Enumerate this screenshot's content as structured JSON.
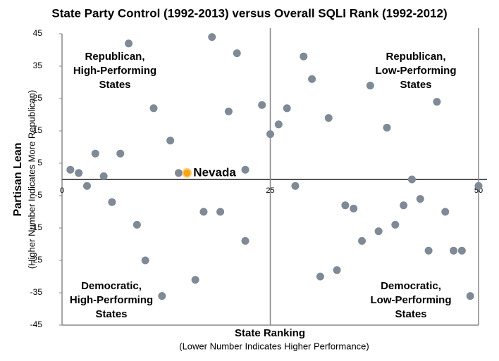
{
  "chart_data": {
    "type": "scatter",
    "title": "State Party Control (1992-2013) versus Overall SQLI Rank (1992-2012)",
    "x_label": "State Ranking",
    "x_sublabel": "(Lower Number Indicates Higher Performance)",
    "y_label": "Partisan Lean",
    "y_sublabel": "(Higher Number Indicates More Republican)",
    "color": "#7f8a96",
    "x": [
      1,
      2,
      3,
      4,
      5,
      6,
      7,
      8,
      9,
      10,
      11,
      12,
      13,
      14,
      16,
      17,
      18,
      19,
      20,
      21,
      22,
      22,
      24,
      25,
      26,
      27,
      28,
      29,
      30,
      31,
      32,
      33,
      34,
      35,
      36,
      37,
      38,
      39,
      40,
      41,
      42,
      43,
      44,
      45,
      46,
      47,
      48,
      49,
      50
    ],
    "values": [
      3,
      2,
      -2,
      8,
      1,
      -7,
      8,
      42,
      -14,
      -25,
      22,
      -36,
      12,
      2,
      -31,
      -10,
      44,
      -10,
      21,
      39,
      3,
      -19,
      23,
      14,
      17,
      22,
      -2,
      38,
      31,
      -30,
      19,
      -28,
      -8,
      -9,
      -19,
      29,
      -16,
      16,
      -14,
      -8,
      0,
      -6,
      -22,
      24,
      -10,
      -22,
      -22,
      -36,
      -2
    ],
    "highlight": {
      "label": "Nevada",
      "x": 15,
      "y": 2,
      "color": "#f5a31a"
    },
    "quadrants": [
      [
        "Republican,",
        "High-Performing",
        "States"
      ],
      [
        "Republican,",
        "Low-Performing",
        "States"
      ],
      [
        "Democratic,",
        "High-Performing",
        "States"
      ],
      [
        "Democratic,",
        "Low-Performing",
        "States"
      ]
    ],
    "xlim": [
      0,
      50
    ],
    "xticks": [
      0,
      25,
      50
    ],
    "ylim": [
      -45,
      45
    ],
    "yticks": [
      45,
      35,
      25,
      15,
      5,
      -5,
      -15,
      -25,
      -35,
      -45
    ]
  }
}
